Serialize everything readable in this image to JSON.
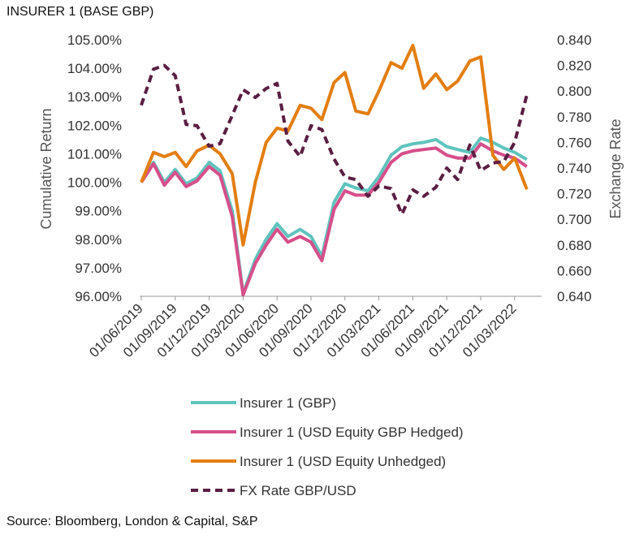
{
  "title": "INSURER 1 (BASE GBP)",
  "source": "Source: Bloomberg, London & Capital, S&P",
  "chart_data": {
    "type": "line",
    "ylabel": "Cumulative Return",
    "y2label": "Exchange Rate",
    "ylim": [
      96,
      105
    ],
    "yticks": [
      "105.00%",
      "104.00%",
      "103.00%",
      "102.00%",
      "101.00%",
      "100.00%",
      "99.00%",
      "98.00%",
      "97.00%",
      "96.00%"
    ],
    "y2lim": [
      0.64,
      0.84
    ],
    "y2ticks": [
      "0.840",
      "0.820",
      "0.800",
      "0.780",
      "0.760",
      "0.740",
      "0.720",
      "0.700",
      "0.680",
      "0.660",
      "0.640"
    ],
    "xticks": [
      "01/06/2019",
      "01/09/2019",
      "01/12/2019",
      "01/03/2020",
      "01/06/2020",
      "01/09/2020",
      "01/12/2020",
      "01/03/2021",
      "01/06/2021",
      "01/09/2021",
      "01/12/2021",
      "01/03/2022"
    ],
    "grid": false,
    "legend_position": "bottom",
    "series": [
      {
        "name": "Insurer 1 (GBP)",
        "axis": "left",
        "color": "#5fc4bd",
        "dash": false,
        "values": [
          [
            0,
            100.0
          ],
          [
            0.36,
            100.7
          ],
          [
            0.68,
            100.0
          ],
          [
            1.0,
            100.45
          ],
          [
            1.32,
            99.95
          ],
          [
            1.64,
            100.15
          ],
          [
            2.0,
            100.7
          ],
          [
            2.32,
            100.4
          ],
          [
            2.68,
            99.0
          ],
          [
            3.0,
            96.1
          ],
          [
            3.36,
            97.3
          ],
          [
            3.68,
            98.0
          ],
          [
            4.0,
            98.55
          ],
          [
            4.32,
            98.1
          ],
          [
            4.68,
            98.35
          ],
          [
            5.0,
            98.1
          ],
          [
            5.32,
            97.4
          ],
          [
            5.68,
            99.3
          ],
          [
            6.0,
            99.95
          ],
          [
            6.32,
            99.8
          ],
          [
            6.68,
            99.7
          ],
          [
            7.0,
            100.2
          ],
          [
            7.36,
            100.95
          ],
          [
            7.68,
            101.25
          ],
          [
            8.0,
            101.35
          ],
          [
            8.32,
            101.4
          ],
          [
            8.68,
            101.5
          ],
          [
            9.0,
            101.25
          ],
          [
            9.32,
            101.15
          ],
          [
            9.68,
            101.05
          ],
          [
            10.0,
            101.55
          ],
          [
            10.36,
            101.4
          ],
          [
            10.68,
            101.2
          ],
          [
            11.0,
            101.05
          ],
          [
            11.36,
            100.8
          ]
        ]
      },
      {
        "name": "Insurer 1 (USD Equity GBP Hedged)",
        "axis": "left",
        "color": "#d64f8a",
        "dash": false,
        "values": [
          [
            0,
            100.0
          ],
          [
            0.36,
            100.65
          ],
          [
            0.68,
            99.9
          ],
          [
            1.0,
            100.35
          ],
          [
            1.32,
            99.85
          ],
          [
            1.64,
            100.05
          ],
          [
            2.0,
            100.55
          ],
          [
            2.32,
            100.25
          ],
          [
            2.68,
            98.8
          ],
          [
            3.0,
            96.05
          ],
          [
            3.36,
            97.15
          ],
          [
            3.68,
            97.8
          ],
          [
            4.0,
            98.35
          ],
          [
            4.32,
            97.9
          ],
          [
            4.68,
            98.1
          ],
          [
            5.0,
            97.9
          ],
          [
            5.32,
            97.25
          ],
          [
            5.68,
            99.05
          ],
          [
            6.0,
            99.7
          ],
          [
            6.32,
            99.55
          ],
          [
            6.68,
            99.55
          ],
          [
            7.0,
            100.0
          ],
          [
            7.36,
            100.7
          ],
          [
            7.68,
            101.0
          ],
          [
            8.0,
            101.1
          ],
          [
            8.32,
            101.15
          ],
          [
            8.68,
            101.2
          ],
          [
            9.0,
            100.95
          ],
          [
            9.32,
            100.85
          ],
          [
            9.68,
            100.85
          ],
          [
            10.0,
            101.35
          ],
          [
            10.36,
            101.1
          ],
          [
            10.68,
            100.95
          ],
          [
            11.0,
            100.85
          ],
          [
            11.36,
            100.55
          ]
        ]
      },
      {
        "name": "Insurer 1 (USD Equity Unhedged)",
        "axis": "left",
        "color": "#e37e12",
        "dash": false,
        "values": [
          [
            0,
            100.0
          ],
          [
            0.36,
            101.05
          ],
          [
            0.68,
            100.9
          ],
          [
            1.0,
            101.05
          ],
          [
            1.32,
            100.55
          ],
          [
            1.64,
            101.1
          ],
          [
            2.0,
            101.3
          ],
          [
            2.32,
            101.0
          ],
          [
            2.68,
            100.3
          ],
          [
            3.0,
            97.8
          ],
          [
            3.36,
            100.0
          ],
          [
            3.68,
            101.4
          ],
          [
            4.0,
            101.9
          ],
          [
            4.32,
            101.8
          ],
          [
            4.68,
            102.7
          ],
          [
            5.0,
            102.6
          ],
          [
            5.32,
            102.2
          ],
          [
            5.68,
            103.5
          ],
          [
            6.0,
            103.85
          ],
          [
            6.32,
            102.5
          ],
          [
            6.68,
            102.4
          ],
          [
            7.0,
            103.2
          ],
          [
            7.36,
            104.2
          ],
          [
            7.68,
            104.0
          ],
          [
            8.0,
            104.8
          ],
          [
            8.32,
            103.3
          ],
          [
            8.68,
            103.8
          ],
          [
            9.0,
            103.25
          ],
          [
            9.32,
            103.55
          ],
          [
            9.68,
            104.25
          ],
          [
            10.0,
            104.4
          ],
          [
            10.36,
            100.95
          ],
          [
            10.68,
            100.45
          ],
          [
            11.0,
            100.85
          ],
          [
            11.36,
            99.75
          ]
        ]
      },
      {
        "name": "FX Rate GBP/USD",
        "axis": "right",
        "color": "#5a1e42",
        "dash": true,
        "values": [
          [
            0,
            0.789
          ],
          [
            0.36,
            0.817
          ],
          [
            0.68,
            0.82
          ],
          [
            1.0,
            0.812
          ],
          [
            1.32,
            0.774
          ],
          [
            1.64,
            0.773
          ],
          [
            2.0,
            0.757
          ],
          [
            2.32,
            0.759
          ],
          [
            2.68,
            0.781
          ],
          [
            3.0,
            0.801
          ],
          [
            3.36,
            0.795
          ],
          [
            3.68,
            0.802
          ],
          [
            4.0,
            0.806
          ],
          [
            4.32,
            0.761
          ],
          [
            4.68,
            0.749
          ],
          [
            5.0,
            0.773
          ],
          [
            5.32,
            0.77
          ],
          [
            5.68,
            0.747
          ],
          [
            6.0,
            0.733
          ],
          [
            6.32,
            0.731
          ],
          [
            6.68,
            0.718
          ],
          [
            7.0,
            0.726
          ],
          [
            7.36,
            0.724
          ],
          [
            7.68,
            0.704
          ],
          [
            8.0,
            0.723
          ],
          [
            8.32,
            0.718
          ],
          [
            8.68,
            0.725
          ],
          [
            9.0,
            0.74
          ],
          [
            9.32,
            0.731
          ],
          [
            9.68,
            0.758
          ],
          [
            10.0,
            0.738
          ],
          [
            10.36,
            0.744
          ],
          [
            10.68,
            0.745
          ],
          [
            11.0,
            0.76
          ],
          [
            11.36,
            0.797
          ]
        ]
      }
    ]
  }
}
